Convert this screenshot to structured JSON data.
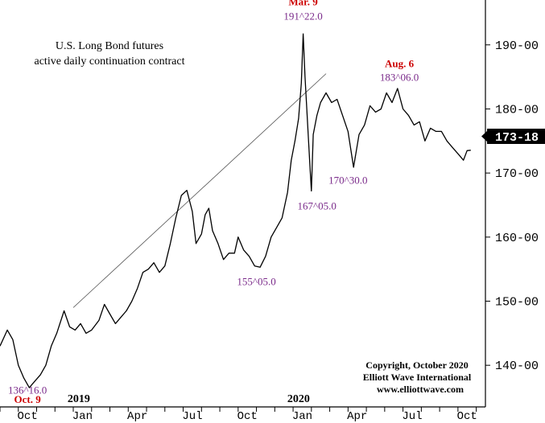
{
  "chart_data": {
    "type": "line",
    "title": "U.S. Long Bond futures",
    "subtitle": "active daily continuation contract",
    "y_ticks": [
      "190-00",
      "180-00",
      "170-00",
      "160-00",
      "150-00",
      "140-00"
    ],
    "y_tick_values": [
      190,
      180,
      170,
      160,
      150,
      140
    ],
    "ylim": [
      133.5,
      197
    ],
    "x_ticks": [
      "Oct",
      "Jan",
      "Apr",
      "Jul",
      "Oct",
      "Jan",
      "Apr",
      "Jul",
      "Oct"
    ],
    "x_tick_months": [
      0,
      3,
      6,
      9,
      12,
      15,
      18,
      21,
      24
    ],
    "xlim": [
      -1,
      25.5
    ],
    "year_labels": [
      {
        "label": "2019",
        "month": 3
      },
      {
        "label": "2020",
        "month": 15
      }
    ],
    "last_price": {
      "label": "173-18",
      "value": 173.56
    },
    "series": [
      {
        "x": [
          -1.0,
          -0.6,
          -0.3,
          0.0,
          0.3,
          0.6,
          0.9,
          1.2,
          1.5,
          1.8,
          2.1,
          2.5,
          2.8,
          3.1,
          3.4,
          3.7,
          4.0,
          4.4,
          4.7,
          5.0,
          5.3,
          5.6,
          5.9,
          6.2,
          6.5,
          6.8,
          7.1,
          7.4,
          7.7,
          8.0,
          8.3,
          8.6,
          8.9,
          9.2,
          9.5,
          9.7,
          10.0,
          10.2,
          10.4,
          10.6,
          10.9,
          11.2,
          11.5,
          11.8,
          12.0,
          12.3,
          12.6,
          12.9,
          13.2,
          13.5,
          13.8,
          14.1,
          14.4,
          14.7,
          14.9,
          15.1,
          15.3,
          15.45,
          15.55,
          15.65,
          15.75,
          15.9,
          16.0,
          16.1,
          16.3,
          16.5,
          16.8,
          17.1,
          17.4,
          17.7,
          18.0,
          18.3,
          18.6,
          18.9,
          19.2,
          19.5,
          19.8,
          20.1,
          20.4,
          20.7,
          21.0,
          21.3,
          21.6,
          21.9,
          22.2,
          22.5,
          22.8,
          23.1,
          23.4,
          23.7,
          24.0,
          24.3,
          24.5,
          24.7
        ],
        "values": [
          143.0,
          145.5,
          144.0,
          140.0,
          138.0,
          136.5,
          137.5,
          138.5,
          140.0,
          143.0,
          145.0,
          148.5,
          146.0,
          145.5,
          146.5,
          145.0,
          145.5,
          147.0,
          149.5,
          148.0,
          146.5,
          147.5,
          148.5,
          150.0,
          152.0,
          154.5,
          155.0,
          156.0,
          154.5,
          155.5,
          159.0,
          163.0,
          166.5,
          167.3,
          164.0,
          159.0,
          160.5,
          163.5,
          164.5,
          161.0,
          159.0,
          156.5,
          157.5,
          157.5,
          160.0,
          158.0,
          157.0,
          155.5,
          155.3,
          157.0,
          160.0,
          161.5,
          163.0,
          167.0,
          172.0,
          175.0,
          178.5,
          184.0,
          191.7,
          185.0,
          180.0,
          172.0,
          167.2,
          176.0,
          179.0,
          181.0,
          182.5,
          181.0,
          181.5,
          179.0,
          176.5,
          170.9,
          176.0,
          177.5,
          180.5,
          179.5,
          180.0,
          182.5,
          181.0,
          183.2,
          180.0,
          179.0,
          177.5,
          178.0,
          175.0,
          177.0,
          176.5,
          176.5,
          175.0,
          174.0,
          173.0,
          172.0,
          173.5,
          173.56
        ]
      }
    ],
    "trendline": {
      "from": {
        "x": 3.0,
        "y": 149.0
      },
      "to": {
        "x": 16.8,
        "y": 185.5
      }
    },
    "annotations": [
      {
        "text": "Mar. 9",
        "x": 15.55,
        "y": 196.2,
        "color": "#cc0000"
      },
      {
        "text": "191^22.0",
        "x": 15.55,
        "y": 193.9,
        "color": "#7a2a8a"
      },
      {
        "text": "Aug. 6",
        "x": 20.8,
        "y": 186.5,
        "color": "#cc0000"
      },
      {
        "text": "183^06.0",
        "x": 20.8,
        "y": 184.4,
        "color": "#7a2a8a"
      },
      {
        "text": "170^30.0",
        "x": 18.0,
        "y": 168.3,
        "color": "#7a2a8a"
      },
      {
        "text": "167^05.0",
        "x": 16.3,
        "y": 164.3,
        "color": "#7a2a8a"
      },
      {
        "text": "155^05.0",
        "x": 13.0,
        "y": 152.5,
        "color": "#7a2a8a"
      },
      {
        "text": "136^16.0",
        "x": 0.5,
        "y": 135.6,
        "color": "#7a2a8a"
      },
      {
        "text": "Oct. 9",
        "x": 0.5,
        "y": 134.1,
        "color": "#cc0000"
      }
    ],
    "copyright": [
      "Copyright, October 2020",
      "Elliott Wave International",
      "www.elliottwave.com"
    ],
    "colors": {
      "line": "#000000",
      "high_label": "#cc0000",
      "value_label": "#7a2a8a",
      "trendline": "#555555"
    }
  }
}
